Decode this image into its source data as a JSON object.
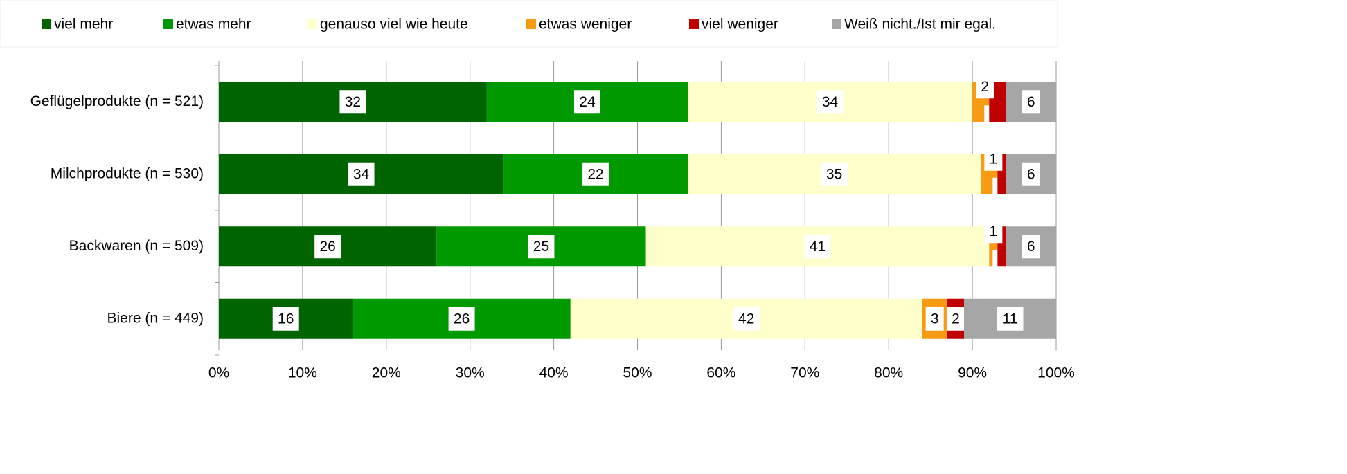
{
  "chart_data": {
    "type": "stacked_bar_horizontal",
    "categories": [
      "Geflügelprodukte (n = 521)",
      "Milchprodukte (n = 530)",
      "Backwaren (n = 509)",
      "Biere (n = 449)"
    ],
    "series": [
      {
        "name": "viel mehr",
        "color": "#006400",
        "values": [
          32,
          34,
          26,
          16
        ]
      },
      {
        "name": "etwas mehr",
        "color": "#009900",
        "values": [
          24,
          22,
          25,
          26
        ]
      },
      {
        "name": "genauso viel wie heute",
        "color": "#ffffcc",
        "values": [
          34,
          35,
          41,
          42
        ]
      },
      {
        "name": "etwas weniger",
        "color": "#f79a14",
        "values": [
          2,
          2,
          1,
          3
        ]
      },
      {
        "name": "viel weniger",
        "color": "#c00000",
        "values": [
          2,
          1,
          1,
          2
        ]
      },
      {
        "name": "Weiß nicht./Ist mir egal.",
        "color": "#a6a6a6",
        "values": [
          6,
          6,
          6,
          11
        ]
      }
    ],
    "xlim": [
      0,
      100
    ],
    "xticks": [
      {
        "value": 0,
        "label": "0%"
      },
      {
        "value": 10,
        "label": "10%"
      },
      {
        "value": 20,
        "label": "20%"
      },
      {
        "value": 30,
        "label": "30%"
      },
      {
        "value": 40,
        "label": "40%"
      },
      {
        "value": 50,
        "label": "50%"
      },
      {
        "value": 60,
        "label": "60%"
      },
      {
        "value": 70,
        "label": "70%"
      },
      {
        "value": 80,
        "label": "80%"
      },
      {
        "value": 90,
        "label": "90%"
      },
      {
        "value": 100,
        "label": "100%"
      }
    ],
    "grid": true,
    "legend": "top"
  }
}
